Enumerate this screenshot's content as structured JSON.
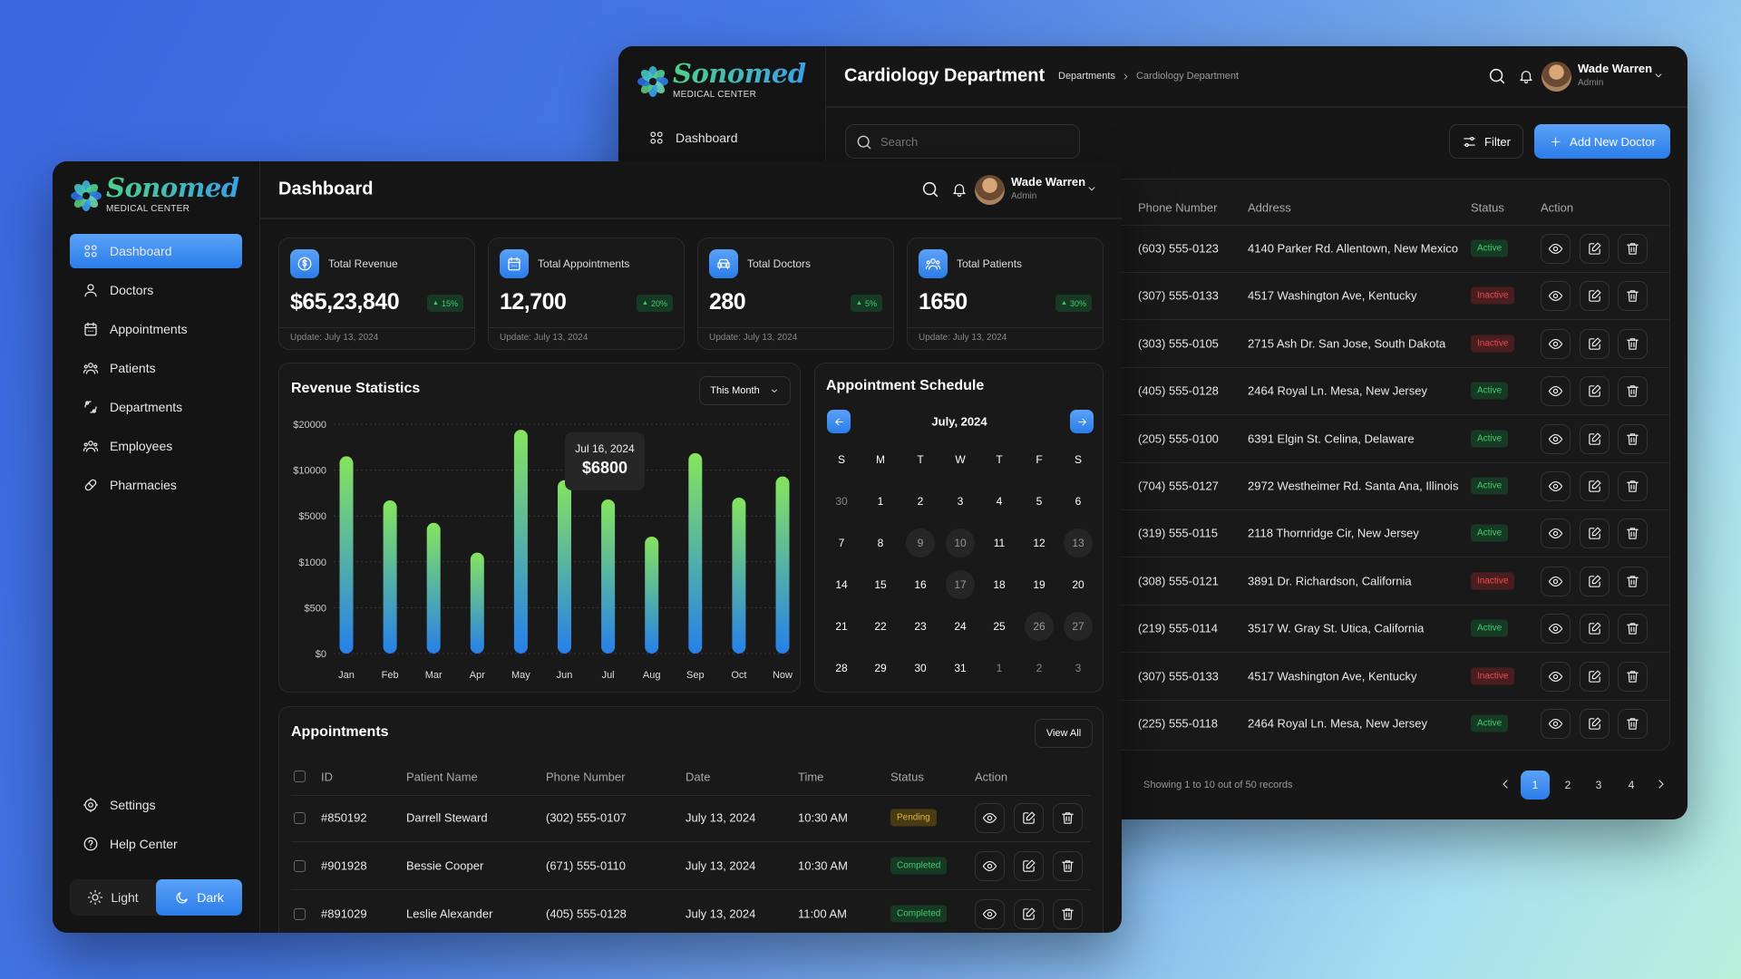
{
  "brand": {
    "name": "Sonomed",
    "tagline": "MEDICAL CENTER"
  },
  "user": {
    "name": "Wade Warren",
    "role": "Admin"
  },
  "colors": {
    "accent": "#2f86ee",
    "active": "#3ecf6b",
    "inactive": "#ee4b4f",
    "pending": "#e0b43a",
    "bar_top": "#86e45e",
    "bar_bottom": "#2680ea",
    "window_bg": "#161616"
  },
  "back_window": {
    "sidebar": {
      "items": [
        {
          "label": "Dashboard",
          "icon": "grid-icon"
        }
      ]
    },
    "header": {
      "title": "Cardiology Department",
      "breadcrumb": [
        "Departments",
        "Cardiology Department"
      ]
    },
    "search": {
      "placeholder": "Search"
    },
    "filter_label": "Filter",
    "add_label": "Add New Doctor",
    "table": {
      "columns": [
        "Phone Number",
        "Address",
        "Status",
        "Action"
      ],
      "rows": [
        {
          "phone": "(603) 555-0123",
          "address": "4140 Parker Rd. Allentown, New Mexico",
          "status": "Active"
        },
        {
          "phone": "(307) 555-0133",
          "address": "4517 Washington Ave, Kentucky",
          "status": "Inactive"
        },
        {
          "phone": "(303) 555-0105",
          "address": "2715 Ash Dr. San Jose, South Dakota",
          "status": "Inactive"
        },
        {
          "phone": "(405) 555-0128",
          "address": "2464 Royal Ln. Mesa, New Jersey",
          "status": "Active"
        },
        {
          "phone": "(205) 555-0100",
          "address": "6391 Elgin St. Celina, Delaware",
          "status": "Active"
        },
        {
          "phone": "(704) 555-0127",
          "address": "2972 Westheimer Rd. Santa Ana, Illinois",
          "status": "Active"
        },
        {
          "phone": "(319) 555-0115",
          "address": "2118 Thornridge Cir, New Jersey",
          "status": "Active"
        },
        {
          "phone": "(308) 555-0121",
          "address": "3891 Dr. Richardson, California",
          "status": "Inactive"
        },
        {
          "phone": "(219) 555-0114",
          "address": "3517 W. Gray St. Utica, California",
          "status": "Active"
        },
        {
          "phone": "(307) 555-0133",
          "address": "4517 Washington Ave, Kentucky",
          "status": "Inactive"
        },
        {
          "phone": "(225) 555-0118",
          "address": "2464 Royal Ln. Mesa, New Jersey",
          "status": "Active"
        }
      ]
    },
    "pagination": {
      "summary": "Showing 1 to 10 out of 50 records",
      "pages": [
        "1",
        "2",
        "3",
        "4"
      ],
      "current": "1"
    }
  },
  "front_window": {
    "sidebar": {
      "items": [
        {
          "label": "Dashboard",
          "icon": "grid-icon",
          "active": true
        },
        {
          "label": "Doctors",
          "icon": "user-icon"
        },
        {
          "label": "Appointments",
          "icon": "calendar-icon"
        },
        {
          "label": "Patients",
          "icon": "users-icon"
        },
        {
          "label": "Departments",
          "icon": "departments-icon"
        },
        {
          "label": "Employees",
          "icon": "users-icon"
        },
        {
          "label": "Pharmacies",
          "icon": "pill-icon"
        }
      ],
      "bottom": [
        {
          "label": "Settings",
          "icon": "gear-icon"
        },
        {
          "label": "Help Center",
          "icon": "help-icon"
        }
      ],
      "theme": {
        "light": "Light",
        "dark": "Dark",
        "selected": "Dark"
      }
    },
    "header": {
      "title": "Dashboard"
    },
    "stats": [
      {
        "label": "Total Revenue",
        "value": "$65,23,840",
        "change": "15%",
        "update": "Update: July 13, 2024",
        "icon": "dollar-icon"
      },
      {
        "label": "Total Appointments",
        "value": "12,700",
        "change": "20%",
        "update": "Update: July 13, 2024",
        "icon": "calendar-icon"
      },
      {
        "label": "Total Doctors",
        "value": "280",
        "change": "5%",
        "update": "Update: July 13, 2024",
        "icon": "ambulance-icon"
      },
      {
        "label": "Total Patients",
        "value": "1650",
        "change": "30%",
        "update": "Update: July 13, 2024",
        "icon": "users-icon"
      }
    ],
    "revenue": {
      "title": "Revenue Statistics",
      "period": "This Month",
      "tooltip": {
        "date": "Jul 16, 2024",
        "value": "$6800"
      }
    },
    "schedule": {
      "title": "Appointment Schedule",
      "month": "July, 2024",
      "weekdays": [
        "S",
        "M",
        "T",
        "W",
        "T",
        "F",
        "S"
      ],
      "weeks": [
        [
          {
            "day": "30",
            "outside": true
          },
          {
            "day": "1"
          },
          {
            "day": "2"
          },
          {
            "day": "3"
          },
          {
            "day": "4"
          },
          {
            "day": "5"
          },
          {
            "day": "6"
          }
        ],
        [
          {
            "day": "7"
          },
          {
            "day": "8"
          },
          {
            "day": "9",
            "marked": true
          },
          {
            "day": "10",
            "marked": true
          },
          {
            "day": "11"
          },
          {
            "day": "12"
          },
          {
            "day": "13",
            "marked": true
          }
        ],
        [
          {
            "day": "14"
          },
          {
            "day": "15"
          },
          {
            "day": "16"
          },
          {
            "day": "17",
            "marked": true
          },
          {
            "day": "18"
          },
          {
            "day": "19"
          },
          {
            "day": "20"
          }
        ],
        [
          {
            "day": "21"
          },
          {
            "day": "22"
          },
          {
            "day": "23"
          },
          {
            "day": "24"
          },
          {
            "day": "25"
          },
          {
            "day": "26",
            "marked": true
          },
          {
            "day": "27",
            "marked": true
          }
        ],
        [
          {
            "day": "28"
          },
          {
            "day": "29"
          },
          {
            "day": "30"
          },
          {
            "day": "31"
          },
          {
            "day": "1",
            "outside": true
          },
          {
            "day": "2",
            "outside": true
          },
          {
            "day": "3",
            "outside": true
          }
        ]
      ]
    },
    "appointments": {
      "title": "Appointments",
      "view_all": "View All",
      "columns": [
        "ID",
        "Patient Name",
        "Phone Number",
        "Date",
        "Time",
        "Status",
        "Action"
      ],
      "rows": [
        {
          "id": "#850192",
          "name": "Darrell Steward",
          "phone": "(302) 555-0107",
          "date": "July 13, 2024",
          "time": "10:30 AM",
          "status": "Pending"
        },
        {
          "id": "#901928",
          "name": "Bessie Cooper",
          "phone": "(671) 555-0110",
          "date": "July 13, 2024",
          "time": "10:30 AM",
          "status": "Completed"
        },
        {
          "id": "#891029",
          "name": "Leslie Alexander",
          "phone": "(405) 555-0128",
          "date": "July 13, 2024",
          "time": "11:00 AM",
          "status": "Completed"
        }
      ]
    }
  },
  "chart_data": {
    "type": "bar",
    "title": "Revenue Statistics",
    "categories": [
      "Jan",
      "Feb",
      "Mar",
      "Apr",
      "May",
      "Jun",
      "Jul",
      "Aug",
      "Sep",
      "Oct",
      "Now"
    ],
    "values": [
      13000,
      6700,
      4400,
      1800,
      18800,
      8900,
      6800,
      3200,
      13700,
      7000,
      9300
    ],
    "y_ticks": [
      0,
      500,
      1000,
      5000,
      10000,
      20000
    ],
    "y_tick_labels": [
      "$0",
      "$500",
      "$1000",
      "$5000",
      "$10000",
      "$20000"
    ],
    "y_scale": "equal spacing between listed ticks",
    "ylim": [
      0,
      20000
    ],
    "grid": true,
    "xlabel": "",
    "ylabel": ""
  }
}
